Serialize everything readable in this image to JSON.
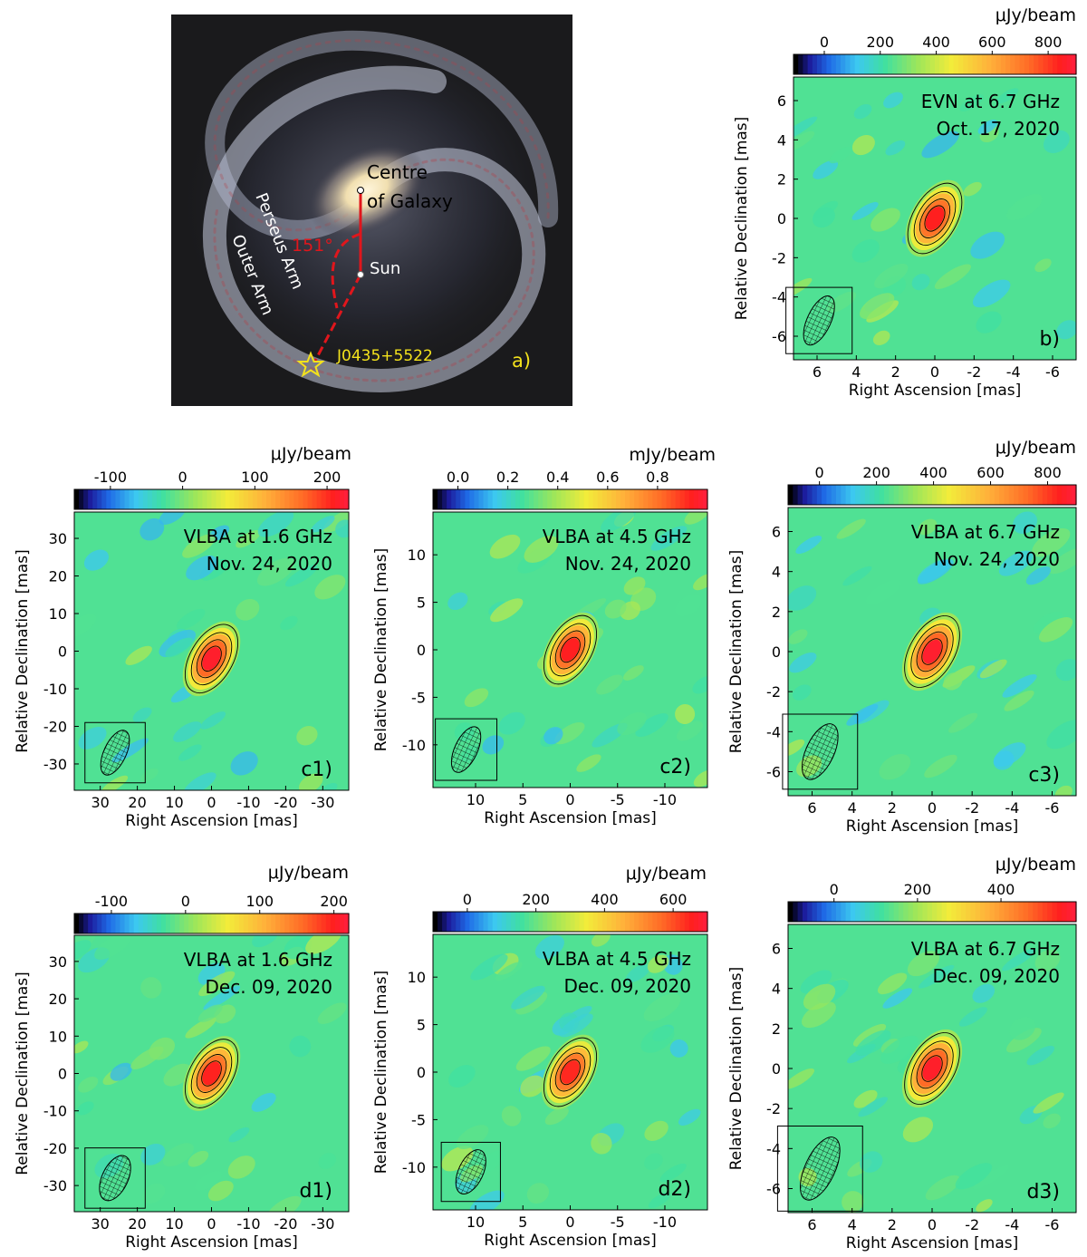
{
  "galaxy": {
    "centre_label_1": "Centre",
    "centre_label_2": "of Galaxy",
    "angle_label": "151°",
    "sun_label": "Sun",
    "perseus_label": "Perseus Arm",
    "outer_label": "Outer Arm",
    "source_label": "J0435+5522",
    "panel_tag": "a)"
  },
  "colors": {
    "annotation_red": "#e0161c",
    "annotation_yellow": "#f3e21c",
    "space": "#1a1a1c"
  },
  "chart_data": [
    {
      "id": "b",
      "type": "heatmap",
      "panel_tag": "b)",
      "title_line1": "EVN at 6.7 GHz",
      "title_line2": "Oct. 17, 2020",
      "unit": "μJy/beam",
      "colorbar": {
        "min": -110,
        "max": 900,
        "ticks": [
          0,
          200,
          400,
          600,
          800
        ]
      },
      "xlabel": "Right Ascension [mas]",
      "ylabel": "Relative Declination [mas]",
      "xlim": [
        7.2,
        -7.2
      ],
      "ylim": [
        -7.2,
        7.2
      ],
      "xticks": [
        6,
        4,
        2,
        0,
        -2,
        -4,
        -6
      ],
      "yticks": [
        6,
        4,
        2,
        0,
        -2,
        -4,
        -6
      ],
      "source": {
        "x": 0,
        "y": 0,
        "peak": 850
      },
      "beam": {
        "x": 5.9,
        "y": -5.2,
        "major": 2.7,
        "minor": 1.2
      }
    },
    {
      "id": "c1",
      "type": "heatmap",
      "panel_tag": "c1)",
      "title_line1": "VLBA at 1.6 GHz",
      "title_line2": "Nov. 24, 2020",
      "unit": "μJy/beam",
      "colorbar": {
        "min": -150,
        "max": 230,
        "ticks": [
          -100,
          0,
          100,
          200
        ]
      },
      "xlabel": "Right Ascension [mas]",
      "ylabel": "Relative Declination [mas]",
      "xlim": [
        37,
        -37
      ],
      "ylim": [
        -37,
        37
      ],
      "xticks": [
        30,
        20,
        10,
        0,
        -10,
        -20,
        -30
      ],
      "yticks": [
        30,
        20,
        10,
        0,
        -10,
        -20,
        -30
      ],
      "source": {
        "x": 0,
        "y": -2,
        "peak": 220
      },
      "beam": {
        "x": 26,
        "y": -27,
        "major": 13,
        "minor": 6
      }
    },
    {
      "id": "c2",
      "type": "heatmap",
      "panel_tag": "c2)",
      "title_line1": "VLBA at 4.5 GHz",
      "title_line2": "Nov. 24, 2020",
      "unit": "mJy/beam",
      "colorbar": {
        "min": -0.1,
        "max": 1.0,
        "ticks": [
          0.0,
          0.2,
          0.4,
          0.6,
          0.8
        ]
      },
      "xlabel": "Right Ascension [mas]",
      "ylabel": "Relative Declination [mas]",
      "xlim": [
        14.5,
        -14.5
      ],
      "ylim": [
        -14.5,
        14.5
      ],
      "xticks": [
        10,
        5,
        0,
        -5,
        -10
      ],
      "yticks": [
        10,
        5,
        0,
        -5,
        -10
      ],
      "source": {
        "x": 0,
        "y": 0,
        "peak": 0.95
      },
      "beam": {
        "x": 11,
        "y": -10.5,
        "major": 5.2,
        "minor": 2.4
      }
    },
    {
      "id": "c3",
      "type": "heatmap",
      "panel_tag": "c3)",
      "title_line1": "VLBA at 6.7 GHz",
      "title_line2": "Nov. 24, 2020",
      "unit": "μJy/beam",
      "colorbar": {
        "min": -110,
        "max": 900,
        "ticks": [
          0,
          200,
          400,
          600,
          800
        ]
      },
      "xlabel": "Right Ascension [mas]",
      "ylabel": "Relative Declination [mas]",
      "xlim": [
        7.2,
        -7.2
      ],
      "ylim": [
        -7.2,
        7.2
      ],
      "xticks": [
        6,
        4,
        2,
        0,
        -2,
        -4,
        -6
      ],
      "yticks": [
        6,
        4,
        2,
        0,
        -2,
        -4,
        -6
      ],
      "source": {
        "x": 0,
        "y": 0,
        "peak": 880
      },
      "beam": {
        "x": 5.6,
        "y": -5.0,
        "major": 3.0,
        "minor": 1.4
      }
    },
    {
      "id": "d1",
      "type": "heatmap",
      "panel_tag": "d1)",
      "title_line1": "VLBA at 1.6 GHz",
      "title_line2": "Dec. 09, 2020",
      "unit": "μJy/beam",
      "colorbar": {
        "min": -150,
        "max": 220,
        "ticks": [
          -100,
          0,
          100,
          200
        ]
      },
      "xlabel": "Right Ascension [mas]",
      "ylabel": "Relative Declination [mas]",
      "xlim": [
        37,
        -37
      ],
      "ylim": [
        -37,
        37
      ],
      "xticks": [
        30,
        20,
        10,
        0,
        -10,
        -20,
        -30
      ],
      "yticks": [
        30,
        20,
        10,
        0,
        -10,
        -20,
        -30
      ],
      "source": {
        "x": 0,
        "y": 0,
        "peak": 200
      },
      "beam": {
        "x": 26,
        "y": -28,
        "major": 13,
        "minor": 7
      }
    },
    {
      "id": "d2",
      "type": "heatmap",
      "panel_tag": "d2)",
      "title_line1": "VLBA at 4.5 GHz",
      "title_line2": "Dec. 09, 2020",
      "unit": "μJy/beam",
      "colorbar": {
        "min": -100,
        "max": 700,
        "ticks": [
          0,
          200,
          400,
          600
        ]
      },
      "xlabel": "Right Ascension [mas]",
      "ylabel": "Relative Declination [mas]",
      "xlim": [
        14.5,
        -14.5
      ],
      "ylim": [
        -14.5,
        14.5
      ],
      "xticks": [
        10,
        5,
        0,
        -5,
        -10
      ],
      "yticks": [
        10,
        5,
        0,
        -5,
        -10
      ],
      "source": {
        "x": 0,
        "y": 0,
        "peak": 650
      },
      "beam": {
        "x": 10.5,
        "y": -10.5,
        "major": 5.0,
        "minor": 2.6
      }
    },
    {
      "id": "d3",
      "type": "heatmap",
      "panel_tag": "d3)",
      "title_line1": "VLBA at 6.7 GHz",
      "title_line2": "Dec. 09, 2020",
      "unit": "μJy/beam",
      "colorbar": {
        "min": -110,
        "max": 580,
        "ticks": [
          0,
          200,
          400
        ]
      },
      "xlabel": "Right Ascension [mas]",
      "ylabel": "Relative Declination [mas]",
      "xlim": [
        7.2,
        -7.2
      ],
      "ylim": [
        -7.2,
        7.2
      ],
      "xticks": [
        6,
        4,
        2,
        0,
        -2,
        -4,
        -6
      ],
      "yticks": [
        6,
        4,
        2,
        0,
        -2,
        -4,
        -6
      ],
      "source": {
        "x": 0,
        "y": 0,
        "peak": 560
      },
      "beam": {
        "x": 5.6,
        "y": -5.0,
        "major": 3.4,
        "minor": 1.5
      }
    }
  ]
}
